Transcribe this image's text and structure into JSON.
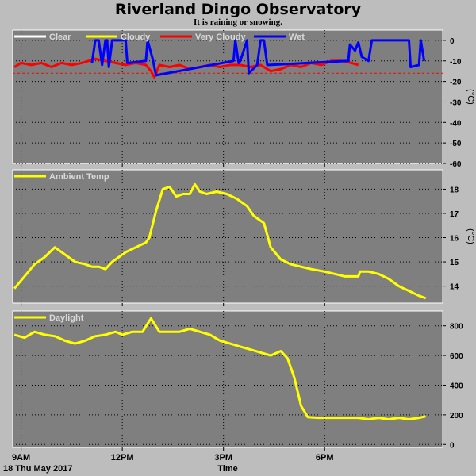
{
  "header": {
    "title": "Riverland Dingo Observatory",
    "subtitle": "It is raining or snowing."
  },
  "footer": {
    "date_label": "18 Thu May 2017",
    "time_label": "Time"
  },
  "colors": {
    "panel_bg": "#7f7f7f",
    "page_bg": "#bdbdbd",
    "clear": "#ffffff",
    "cloudy": "#ffff00",
    "very_cloudy": "#ff0000",
    "wet": "#0000ff",
    "grid": "#000000"
  },
  "chart_data": [
    {
      "type": "line",
      "title": "",
      "ylabel": "(°C)",
      "ylim": [
        -60,
        5
      ],
      "yticks": [
        "0",
        "-10",
        "-20",
        "-30",
        "-40",
        "-50",
        "-60"
      ],
      "ytick_values": [
        0,
        -10,
        -20,
        -30,
        -40,
        -50,
        -60
      ],
      "xlim": [
        8.75,
        21.5
      ],
      "xticks": [
        "9AM",
        "12PM",
        "3PM",
        "6PM"
      ],
      "xtick_values": [
        9,
        12,
        15,
        18
      ],
      "grid": true,
      "legend_position": "top-left",
      "legend": [
        "Clear",
        "Cloudy",
        "Very Cloudy",
        "Wet"
      ],
      "threshold": -16,
      "series": [
        {
          "name": "Very Cloudy",
          "color": "#ff0000",
          "x": [
            8.8,
            9.0,
            9.3,
            9.6,
            9.9,
            10.2,
            10.5,
            10.8,
            11.0,
            11.2,
            11.5,
            11.8,
            12.1,
            12.4,
            12.7,
            12.85,
            12.95,
            13.1,
            13.4,
            13.7,
            14.0,
            14.3,
            14.6,
            14.9,
            15.2,
            15.5,
            15.8,
            16.1,
            16.4,
            16.7,
            17.0,
            17.3,
            17.6,
            17.9,
            18.2,
            18.5,
            18.8,
            19.0
          ],
          "y": [
            -13,
            -11,
            -12,
            -11,
            -13,
            -11,
            -12,
            -11,
            -10,
            -9,
            -10,
            -11,
            -12,
            -11,
            -12,
            -15,
            -18,
            -12,
            -13,
            -12,
            -14,
            -13,
            -12,
            -13,
            -12,
            -12,
            -13,
            -12,
            -15,
            -14,
            -12,
            -13,
            -11,
            -12,
            -10,
            -10,
            -11,
            -12
          ]
        },
        {
          "name": "Wet",
          "color": "#0000ff",
          "x": [
            11.1,
            11.2,
            11.3,
            11.4,
            11.5,
            11.55,
            11.6,
            11.7,
            11.8,
            12.1,
            12.15,
            12.2,
            12.7,
            12.75,
            12.9,
            13.0,
            15.3,
            15.35,
            15.45,
            15.5,
            15.7,
            15.75,
            16.0,
            16.1,
            16.2,
            16.3,
            16.35,
            18.7,
            18.75,
            18.9,
            19.0,
            19.1,
            19.3,
            19.4,
            20.5,
            20.55,
            20.8,
            20.85,
            20.95
          ],
          "y": [
            -11,
            0,
            0,
            -12,
            0,
            0,
            -13,
            0,
            0,
            0,
            -11,
            -11,
            -10,
            0,
            -9,
            -17,
            -10,
            0,
            -11,
            -10,
            0,
            -16,
            -12,
            0,
            0,
            -12,
            -12,
            -10,
            -2,
            -5,
            -1,
            -8,
            -10,
            0,
            0,
            -13,
            -12,
            0,
            -10
          ]
        }
      ]
    },
    {
      "type": "line",
      "title": "",
      "ylabel": "(°C)",
      "ylim": [
        13.3,
        18.8
      ],
      "yticks": [
        "14",
        "15",
        "16",
        "17",
        "18"
      ],
      "ytick_values": [
        14,
        15,
        16,
        17,
        18
      ],
      "xlim": [
        8.75,
        21.5
      ],
      "xticks": [
        "9AM",
        "12PM",
        "3PM",
        "6PM"
      ],
      "xtick_values": [
        9,
        12,
        15,
        18
      ],
      "grid": true,
      "legend_position": "top-left",
      "legend": [
        "Ambient Temp"
      ],
      "series": [
        {
          "name": "Ambient Temp",
          "color": "#ffff00",
          "x": [
            8.8,
            9.1,
            9.4,
            9.7,
            10.0,
            10.3,
            10.6,
            10.9,
            11.1,
            11.3,
            11.5,
            11.7,
            11.9,
            12.1,
            12.4,
            12.7,
            12.8,
            13.0,
            13.2,
            13.4,
            13.6,
            13.8,
            14.0,
            14.15,
            14.3,
            14.5,
            14.8,
            15.1,
            15.4,
            15.7,
            15.9,
            16.0,
            16.2,
            16.4,
            16.7,
            17.0,
            17.3,
            17.6,
            18.0,
            18.3,
            18.6,
            19.0,
            19.05,
            19.3,
            19.6,
            19.9,
            20.2,
            20.5,
            20.8,
            21.0
          ],
          "y": [
            13.9,
            14.4,
            14.9,
            15.2,
            15.6,
            15.3,
            15.0,
            14.9,
            14.8,
            14.8,
            14.7,
            15.0,
            15.2,
            15.4,
            15.6,
            15.8,
            16.0,
            17.1,
            18.0,
            18.1,
            17.7,
            17.8,
            17.8,
            18.2,
            17.9,
            17.8,
            17.9,
            17.8,
            17.6,
            17.3,
            16.9,
            16.8,
            16.6,
            15.6,
            15.1,
            14.9,
            14.8,
            14.7,
            14.6,
            14.5,
            14.4,
            14.4,
            14.6,
            14.6,
            14.5,
            14.3,
            14.0,
            13.8,
            13.6,
            13.5
          ]
        }
      ]
    },
    {
      "type": "line",
      "title": "",
      "ylabel": "",
      "ylim": [
        -20,
        900
      ],
      "yticks": [
        "0",
        "200",
        "400",
        "600",
        "800"
      ],
      "ytick_values": [
        0,
        200,
        400,
        600,
        800
      ],
      "xlim": [
        8.75,
        21.5
      ],
      "xticks": [
        "9AM",
        "12PM",
        "3PM",
        "6PM"
      ],
      "xtick_values": [
        9,
        12,
        15,
        18
      ],
      "grid": true,
      "legend_position": "top-left",
      "legend": [
        "Daylight"
      ],
      "series": [
        {
          "name": "Daylight",
          "color": "#ffff00",
          "x": [
            8.8,
            9.1,
            9.4,
            9.7,
            10.0,
            10.3,
            10.6,
            10.9,
            11.2,
            11.5,
            11.8,
            12.0,
            12.3,
            12.6,
            12.85,
            13.1,
            13.4,
            13.7,
            14.0,
            14.3,
            14.6,
            14.9,
            15.2,
            15.5,
            15.8,
            16.1,
            16.4,
            16.7,
            16.9,
            17.1,
            17.3,
            17.5,
            17.8,
            18.2,
            18.6,
            19.0,
            19.3,
            19.6,
            19.9,
            20.2,
            20.5,
            20.8,
            21.0
          ],
          "y": [
            740,
            720,
            760,
            740,
            730,
            700,
            680,
            700,
            730,
            740,
            760,
            740,
            760,
            760,
            850,
            760,
            760,
            760,
            780,
            760,
            740,
            700,
            680,
            660,
            640,
            620,
            600,
            630,
            580,
            450,
            260,
            185,
            180,
            180,
            180,
            180,
            170,
            180,
            170,
            180,
            170,
            180,
            190
          ]
        }
      ]
    }
  ]
}
